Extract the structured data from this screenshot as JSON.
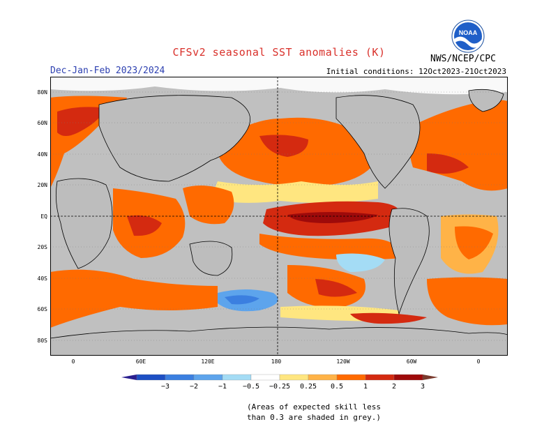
{
  "header": {
    "title": "CFSv2 seasonal SST anomalies (K)",
    "season": "Dec-Jan-Feb 2023/2024",
    "initial_conditions": "Initial conditions: 12Oct2023-21Oct2023",
    "agency": "NWS/NCEP/CPC",
    "logo_text": "NOAA"
  },
  "map": {
    "lat_labels": [
      "80N",
      "60N",
      "40N",
      "20N",
      "EQ",
      "20S",
      "40S",
      "60S",
      "80S"
    ],
    "lon_labels": [
      "0",
      "60E",
      "120E",
      "180",
      "120W",
      "60W",
      "0"
    ]
  },
  "legend": {
    "tick_labels": [
      "−3",
      "−2",
      "−1",
      "−0.5",
      "−0.25",
      "0.25",
      "0.5",
      "1",
      "2",
      "3"
    ],
    "colors": [
      "#2a1f8f",
      "#1d4fc4",
      "#3b7fe0",
      "#5da4ec",
      "#a4dcf5",
      "#ffffff",
      "#ffe680",
      "#ffb347",
      "#ff6a00",
      "#d42a10",
      "#9e0a0a",
      "#7a3b2e"
    ]
  },
  "note": {
    "line1": "(Areas of expected skill less",
    "line2": "than 0.3 are shaded in grey.)"
  }
}
